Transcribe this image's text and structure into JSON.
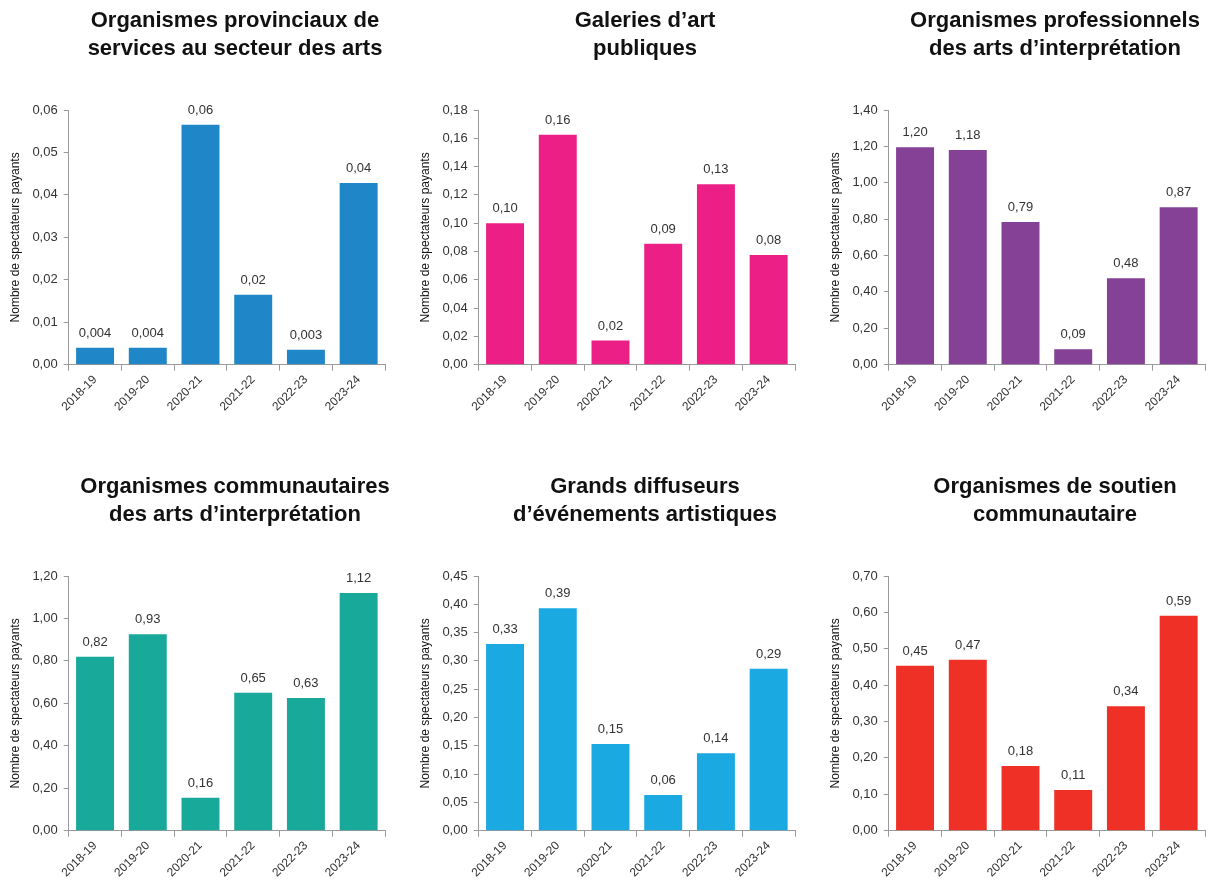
{
  "chart_data": [
    {
      "type": "bar",
      "title": "Organismes provinciaux de\nservices au secteur des arts",
      "ylabel": "Nombre de spectateurs payants",
      "categories": [
        "2018-19",
        "2019-20",
        "2020-21",
        "2021-22",
        "2022-23",
        "2023-24"
      ],
      "values": [
        0.004,
        0.004,
        0.0565,
        0.0165,
        0.0035,
        0.0428
      ],
      "value_labels": [
        "0,004",
        "0,004",
        "0,06",
        "0,02",
        "0,003",
        "0,04"
      ],
      "color": "#1f87c8",
      "ylim": [
        0,
        0.06
      ],
      "yticks": [
        {
          "value": 0,
          "label": "0,00"
        },
        {
          "value": 0.01,
          "label": "0,01"
        },
        {
          "value": 0.02,
          "label": "0,02"
        },
        {
          "value": 0.03,
          "label": "0,03"
        },
        {
          "value": 0.04,
          "label": "0,04"
        },
        {
          "value": 0.05,
          "label": "0,05"
        },
        {
          "value": 0.06,
          "label": "0,06"
        }
      ],
      "grid": false,
      "legend": false
    },
    {
      "type": "bar",
      "title": "Galeries d’art\npubliques",
      "ylabel": "Nombre de spectateurs payants",
      "categories": [
        "2018-19",
        "2019-20",
        "2020-21",
        "2021-22",
        "2022-23",
        "2023-24"
      ],
      "values": [
        0.1,
        0.1625,
        0.017,
        0.0855,
        0.1275,
        0.0775
      ],
      "value_labels": [
        "0,10",
        "0,16",
        "0,02",
        "0,09",
        "0,13",
        "0,08"
      ],
      "color": "#ec1f86",
      "ylim": [
        0,
        0.18
      ],
      "yticks": [
        {
          "value": 0,
          "label": "0,00"
        },
        {
          "value": 0.02,
          "label": "0,02"
        },
        {
          "value": 0.04,
          "label": "0,04"
        },
        {
          "value": 0.06,
          "label": "0,06"
        },
        {
          "value": 0.08,
          "label": "0,08"
        },
        {
          "value": 0.1,
          "label": "0,10"
        },
        {
          "value": 0.12,
          "label": "0,12"
        },
        {
          "value": 0.14,
          "label": "0,14"
        },
        {
          "value": 0.16,
          "label": "0,16"
        },
        {
          "value": 0.18,
          "label": "0,18"
        }
      ],
      "grid": false,
      "legend": false
    },
    {
      "type": "bar",
      "title": "Organismes professionnels\ndes arts d’interprétation",
      "ylabel": "Nombre de spectateurs payants",
      "categories": [
        "2018-19",
        "2019-20",
        "2020-21",
        "2021-22",
        "2022-23",
        "2023-24"
      ],
      "values": [
        1.195,
        1.18,
        0.785,
        0.085,
        0.475,
        0.865
      ],
      "value_labels": [
        "1,20",
        "1,18",
        "0,79",
        "0,09",
        "0,48",
        "0,87"
      ],
      "color": "#844196",
      "ylim": [
        0,
        1.4
      ],
      "yticks": [
        {
          "value": 0,
          "label": "0,00"
        },
        {
          "value": 0.2,
          "label": "0,20"
        },
        {
          "value": 0.4,
          "label": "0,40"
        },
        {
          "value": 0.6,
          "label": "0,60"
        },
        {
          "value": 0.8,
          "label": "0,80"
        },
        {
          "value": 1,
          "label": "1,00"
        },
        {
          "value": 1.2,
          "label": "1,20"
        },
        {
          "value": 1.4,
          "label": "1,40"
        }
      ],
      "grid": false,
      "legend": false
    },
    {
      "type": "bar",
      "title": "Organismes communautaires\ndes arts d’interprétation",
      "ylabel": "Nombre de spectateurs payants",
      "categories": [
        "2018-19",
        "2019-20",
        "2020-21",
        "2021-22",
        "2022-23",
        "2023-24"
      ],
      "values": [
        0.82,
        0.925,
        0.155,
        0.65,
        0.625,
        1.12
      ],
      "value_labels": [
        "0,82",
        "0,93",
        "0,16",
        "0,65",
        "0,63",
        "1,12"
      ],
      "color": "#19a99a",
      "ylim": [
        0,
        1.2
      ],
      "yticks": [
        {
          "value": 0,
          "label": "0,00"
        },
        {
          "value": 0.2,
          "label": "0,20"
        },
        {
          "value": 0.4,
          "label": "0,40"
        },
        {
          "value": 0.6,
          "label": "0,60"
        },
        {
          "value": 0.8,
          "label": "0,80"
        },
        {
          "value": 1,
          "label": "1,00"
        },
        {
          "value": 1.2,
          "label": "1,20"
        }
      ],
      "grid": false,
      "legend": false
    },
    {
      "type": "bar",
      "title": "Grands diffuseurs\nd’événements artistiques",
      "ylabel": "Nombre de spectateurs payants",
      "categories": [
        "2018-19",
        "2019-20",
        "2020-21",
        "2021-22",
        "2022-23",
        "2023-24"
      ],
      "values": [
        0.33,
        0.393,
        0.153,
        0.063,
        0.137,
        0.286
      ],
      "value_labels": [
        "0,33",
        "0,39",
        "0,15",
        "0,06",
        "0,14",
        "0,29"
      ],
      "color": "#1aa9e0",
      "ylim": [
        0,
        0.45
      ],
      "yticks": [
        {
          "value": 0,
          "label": "0,00"
        },
        {
          "value": 0.05,
          "label": "0,05"
        },
        {
          "value": 0.1,
          "label": "0,10"
        },
        {
          "value": 0.15,
          "label": "0,15"
        },
        {
          "value": 0.2,
          "label": "0,20"
        },
        {
          "value": 0.25,
          "label": "0,25"
        },
        {
          "value": 0.3,
          "label": "0,30"
        },
        {
          "value": 0.35,
          "label": "0,35"
        },
        {
          "value": 0.4,
          "label": "0,40"
        },
        {
          "value": 0.45,
          "label": "0,45"
        }
      ],
      "grid": false,
      "legend": false
    },
    {
      "type": "bar",
      "title": "Organismes de soutien\ncommunautaire",
      "ylabel": "Nombre de spectateurs payants",
      "categories": [
        "2018-19",
        "2019-20",
        "2020-21",
        "2021-22",
        "2022-23",
        "2023-24"
      ],
      "values": [
        0.453,
        0.47,
        0.178,
        0.112,
        0.342,
        0.591
      ],
      "value_labels": [
        "0,45",
        "0,47",
        "0,18",
        "0,11",
        "0,34",
        "0,59"
      ],
      "color": "#ee3026",
      "ylim": [
        0,
        0.7
      ],
      "yticks": [
        {
          "value": 0,
          "label": "0,00"
        },
        {
          "value": 0.1,
          "label": "0,10"
        },
        {
          "value": 0.2,
          "label": "0,20"
        },
        {
          "value": 0.3,
          "label": "0,30"
        },
        {
          "value": 0.4,
          "label": "0,40"
        },
        {
          "value": 0.5,
          "label": "0,50"
        },
        {
          "value": 0.6,
          "label": "0,60"
        },
        {
          "value": 0.7,
          "label": "0,70"
        }
      ],
      "grid": false,
      "legend": false
    }
  ]
}
